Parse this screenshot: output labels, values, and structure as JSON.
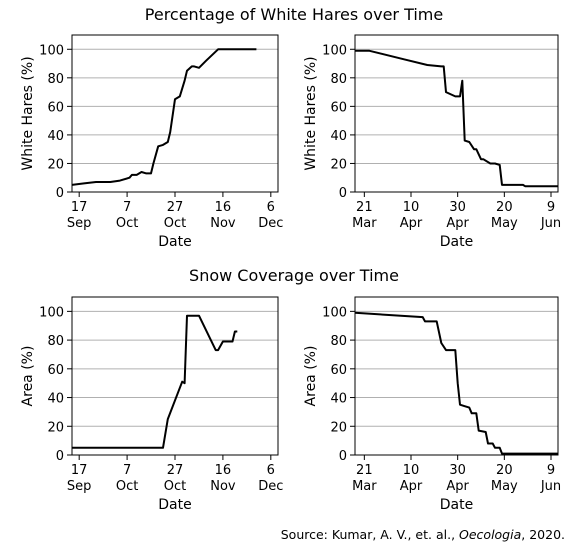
{
  "titles": {
    "top": "Percentage of White Hares over Time",
    "bottom": "Snow Coverage over Time"
  },
  "source": {
    "prefix": "Source: Kumar, A. V., et. al., ",
    "journal": "Oecologia",
    "suffix": ", 2020."
  },
  "chart_data": [
    {
      "id": "hares-fall",
      "type": "line",
      "xlabel": "Date",
      "ylabel": "White Hares (%)",
      "ylim": [
        0,
        110
      ],
      "yticks": [
        0,
        20,
        40,
        60,
        80,
        100
      ],
      "grid": "horizontal",
      "xlim": [
        "2019-09-14",
        "2019-12-09"
      ],
      "xticks": [
        {
          "date": "2019-09-17",
          "day": "17",
          "month": "Sep"
        },
        {
          "date": "2019-10-07",
          "day": "7",
          "month": "Oct"
        },
        {
          "date": "2019-10-27",
          "day": "27",
          "month": "Oct"
        },
        {
          "date": "2019-11-16",
          "day": "16",
          "month": "Nov"
        },
        {
          "date": "2019-12-06",
          "day": "6",
          "month": "Dec"
        }
      ],
      "series": [
        {
          "x": [
            "2019-09-14",
            "2019-09-19",
            "2019-09-24",
            "2019-09-30",
            "2019-10-04",
            "2019-10-08",
            "2019-10-09",
            "2019-10-11",
            "2019-10-13",
            "2019-10-15",
            "2019-10-17",
            "2019-10-18",
            "2019-10-20",
            "2019-10-22",
            "2019-10-24",
            "2019-10-25",
            "2019-10-27",
            "2019-10-29",
            "2019-10-31",
            "2019-11-01",
            "2019-11-03",
            "2019-11-04",
            "2019-11-06",
            "2019-11-09",
            "2019-11-14",
            "2019-11-15",
            "2019-11-23",
            "2019-11-30"
          ],
          "y": [
            5,
            6,
            7,
            7,
            8,
            10,
            12,
            12,
            14,
            13,
            13,
            20,
            32,
            33,
            35,
            42,
            65,
            67,
            78,
            85,
            88,
            88,
            87,
            92,
            100,
            100,
            100,
            100
          ]
        }
      ]
    },
    {
      "id": "hares-spring",
      "type": "line",
      "xlabel": "Date",
      "ylabel": "White Hares (%)",
      "ylim": [
        0,
        110
      ],
      "yticks": [
        0,
        20,
        40,
        60,
        80,
        100
      ],
      "grid": "horizontal",
      "xlim": [
        "2020-03-17",
        "2020-06-12"
      ],
      "xticks": [
        {
          "date": "2020-03-21",
          "day": "21",
          "month": "Mar"
        },
        {
          "date": "2020-04-10",
          "day": "10",
          "month": "Apr"
        },
        {
          "date": "2020-04-30",
          "day": "30",
          "month": "Apr"
        },
        {
          "date": "2020-05-20",
          "day": "20",
          "month": "May"
        },
        {
          "date": "2020-06-09",
          "day": "9",
          "month": "Jun"
        }
      ],
      "series": [
        {
          "x": [
            "2020-03-17",
            "2020-03-23",
            "2020-04-07",
            "2020-04-17",
            "2020-04-23",
            "2020-04-24",
            "2020-04-25",
            "2020-04-29",
            "2020-05-01",
            "2020-05-02",
            "2020-05-03",
            "2020-05-05",
            "2020-05-07",
            "2020-05-08",
            "2020-05-10",
            "2020-05-11",
            "2020-05-14",
            "2020-05-16",
            "2020-05-18",
            "2020-05-19",
            "2020-05-28",
            "2020-05-29",
            "2020-06-12"
          ],
          "y": [
            99,
            99,
            93,
            89,
            88,
            88,
            70,
            67,
            67,
            78,
            36,
            35,
            30,
            30,
            23,
            23,
            20,
            20,
            19,
            5,
            5,
            4,
            4
          ]
        }
      ]
    },
    {
      "id": "snow-fall",
      "type": "line",
      "xlabel": "Date",
      "ylabel": "Area (%)",
      "ylim": [
        0,
        110
      ],
      "yticks": [
        0,
        20,
        40,
        60,
        80,
        100
      ],
      "grid": "horizontal",
      "xlim": [
        "2019-09-14",
        "2019-12-09"
      ],
      "xticks": [
        {
          "date": "2019-09-17",
          "day": "17",
          "month": "Sep"
        },
        {
          "date": "2019-10-07",
          "day": "7",
          "month": "Oct"
        },
        {
          "date": "2019-10-27",
          "day": "27",
          "month": "Oct"
        },
        {
          "date": "2019-11-16",
          "day": "16",
          "month": "Nov"
        },
        {
          "date": "2019-12-06",
          "day": "6",
          "month": "Dec"
        }
      ],
      "series": [
        {
          "x": [
            "2019-09-14",
            "2019-10-22",
            "2019-10-24",
            "2019-10-30",
            "2019-10-31",
            "2019-11-01",
            "2019-11-02",
            "2019-11-06",
            "2019-11-13",
            "2019-11-14",
            "2019-11-16",
            "2019-11-20",
            "2019-11-21",
            "2019-11-22"
          ],
          "y": [
            5,
            5,
            25,
            51,
            50,
            97,
            97,
            97,
            73,
            73,
            79,
            79,
            86,
            86
          ]
        }
      ]
    },
    {
      "id": "snow-spring",
      "type": "line",
      "xlabel": "Date",
      "ylabel": "Area (%)",
      "ylim": [
        0,
        110
      ],
      "yticks": [
        0,
        20,
        40,
        60,
        80,
        100
      ],
      "grid": "horizontal",
      "xlim": [
        "2020-03-17",
        "2020-06-12"
      ],
      "xticks": [
        {
          "date": "2020-03-21",
          "day": "21",
          "month": "Mar"
        },
        {
          "date": "2020-04-10",
          "day": "10",
          "month": "Apr"
        },
        {
          "date": "2020-04-30",
          "day": "30",
          "month": "Apr"
        },
        {
          "date": "2020-05-20",
          "day": "20",
          "month": "May"
        },
        {
          "date": "2020-06-09",
          "day": "9",
          "month": "Jun"
        }
      ],
      "series": [
        {
          "x": [
            "2020-03-17",
            "2020-04-15",
            "2020-04-16",
            "2020-04-21",
            "2020-04-23",
            "2020-04-25",
            "2020-04-29",
            "2020-04-30",
            "2020-05-01",
            "2020-05-03",
            "2020-05-05",
            "2020-05-06",
            "2020-05-08",
            "2020-05-09",
            "2020-05-12",
            "2020-05-13",
            "2020-05-15",
            "2020-05-16",
            "2020-05-18",
            "2020-05-19",
            "2020-05-20",
            "2020-06-12"
          ],
          "y": [
            99,
            96,
            93,
            93,
            78,
            73,
            73,
            50,
            35,
            34,
            33,
            29,
            29,
            17,
            16,
            8,
            8,
            5,
            5,
            1,
            1,
            1
          ]
        }
      ]
    }
  ]
}
